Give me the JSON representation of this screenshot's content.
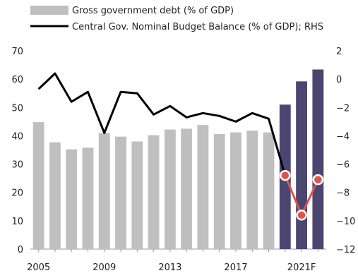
{
  "chart_data": {
    "type": "bar",
    "x": [
      "2005",
      "2006",
      "2007",
      "2008",
      "2009",
      "2010",
      "2011",
      "2012",
      "2013",
      "2014",
      "2015",
      "2016",
      "2017",
      "2018",
      "2019",
      "2020",
      "2021F",
      "2022F"
    ],
    "x_tick_labels": [
      "2005",
      "2009",
      "2013",
      "2017",
      "2021F"
    ],
    "legend": {
      "position": "top-left",
      "entries": [
        {
          "label": "Gross government debt (% of GDP)",
          "swatch": "bar"
        },
        {
          "label": "Central Gov. Nominal Budget Balance (% of GDP); RHS",
          "swatch": "line"
        }
      ]
    },
    "y_left": {
      "min": 0,
      "max": 70,
      "ticks": [
        0,
        10,
        20,
        30,
        40,
        50,
        60,
        70
      ]
    },
    "y_right": {
      "min": -12,
      "max": 2,
      "ticks": [
        2,
        0,
        -2,
        -4,
        -6,
        -8,
        -10,
        -12
      ]
    },
    "series": [
      {
        "name": "Gross government debt (% of GDP)",
        "type": "bar",
        "axis": "left",
        "values": [
          44.8,
          37.7,
          35.2,
          35.8,
          41.0,
          39.7,
          38.0,
          40.2,
          42.2,
          42.5,
          43.8,
          40.6,
          41.2,
          41.8,
          41.2,
          51.0,
          59.2,
          63.4
        ],
        "colors": {
          "actual": "#bfbfbf",
          "forecast": "#4b4670"
        },
        "forecast_from_index": 15
      },
      {
        "name": "Central Gov. Nominal Budget Balance (% of GDP); RHS",
        "type": "line",
        "axis": "right",
        "values": [
          -0.7,
          0.4,
          -1.6,
          -0.9,
          -3.8,
          -0.9,
          -1.0,
          -2.5,
          -1.9,
          -2.7,
          -2.4,
          -2.6,
          -3.0,
          -2.4,
          -2.8,
          -6.8,
          -9.6,
          -7.1
        ],
        "colors": {
          "actual": "#000000",
          "forecast": "#e0534b"
        },
        "forecast_from_index": 15
      }
    ]
  }
}
